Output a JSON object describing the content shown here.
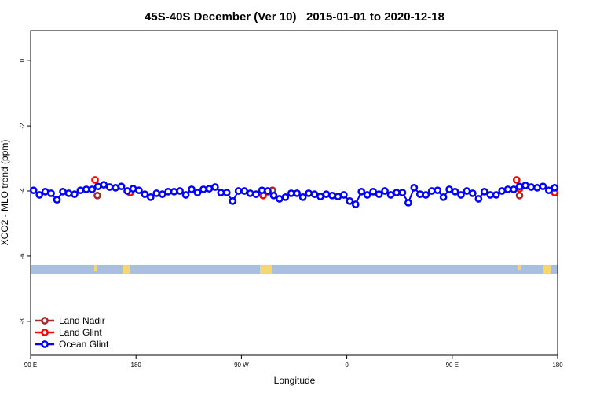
{
  "chart_data": {
    "type": "line",
    "title": "45S-40S December (Ver 10)   2015-01-01 to 2020-12-18",
    "x_label": "Longitude",
    "y_label": "XCO2 - MLO trend (ppm)",
    "xlim": [
      90,
      540
    ],
    "xticks": [
      {
        "value": 90,
        "label": "90 E"
      },
      180,
      {
        "value": 270,
        "label": "90 W"
      },
      {
        "value": 360,
        "label": "0"
      },
      {
        "value": 450,
        "label": "90 E"
      },
      {
        "value": 540,
        "label": "180"
      }
    ],
    "ylim": [
      -9.04,
      0.92
    ],
    "yticks": [
      0,
      -2,
      -4,
      -6,
      -8
    ],
    "legend": "bottom-left",
    "series": [
      {
        "name": "Land Nadir",
        "color": "#a52a2a",
        "connected": false,
        "x": [
          147,
          296.5,
          507.5
        ],
        "values": [
          -4.14,
          -3.98,
          -4.14
        ]
      },
      {
        "name": "Land Glint",
        "color": "#ff0000",
        "connected": false,
        "x": [
          145,
          175,
          288.5,
          292.5,
          505,
          507.5,
          537.5
        ],
        "values": [
          -3.66,
          -4.05,
          -4.14,
          -4.02,
          -3.66,
          -3.93,
          -4.05
        ]
      },
      {
        "name": "Ocean Glint",
        "color": "#0000ff",
        "connected": true,
        "x": [
          92.5,
          97.5,
          102.5,
          107.5,
          112.5,
          117.5,
          122.5,
          127.5,
          132.5,
          137.5,
          142.5,
          147.5,
          152.5,
          157.5,
          162.5,
          167.5,
          172.5,
          177.5,
          182.5,
          187.5,
          192.5,
          197.5,
          202.5,
          207.5,
          212.5,
          217.5,
          222.5,
          227.5,
          232.5,
          237.5,
          242.5,
          247.5,
          252.5,
          257.5,
          262.5,
          267.5,
          272.5,
          277.5,
          282.5,
          287.5,
          292.5,
          297.5,
          302.5,
          307.5,
          312.5,
          317.5,
          322.5,
          327.5,
          332.5,
          337.5,
          342.5,
          347.5,
          352.5,
          357.5,
          362.5,
          367.5,
          372.5,
          377.5,
          382.5,
          387.5,
          392.5,
          397.5,
          402.5,
          407.5,
          412.5,
          417.5,
          422.5,
          427.5,
          432.5,
          437.5,
          442.5,
          447.5,
          452.5,
          457.5,
          462.5,
          467.5,
          472.5,
          477.5,
          482.5,
          487.5,
          492.5,
          497.5,
          502.5,
          507.5,
          512.5,
          517.5,
          522.5,
          527.5,
          532.5,
          537.5
        ],
        "values": [
          -3.98,
          -4.12,
          -4.02,
          -4.07,
          -4.27,
          -4.02,
          -4.07,
          -4.1,
          -3.98,
          -3.95,
          -3.95,
          -3.86,
          -3.81,
          -3.88,
          -3.9,
          -3.86,
          -4.0,
          -3.93,
          -3.98,
          -4.1,
          -4.19,
          -4.07,
          -4.1,
          -4.02,
          -4.02,
          -4.0,
          -4.12,
          -3.95,
          -4.05,
          -3.95,
          -3.93,
          -3.88,
          -4.05,
          -4.05,
          -4.31,
          -4.0,
          -4.0,
          -4.07,
          -4.1,
          -3.98,
          -4.0,
          -4.14,
          -4.24,
          -4.19,
          -4.07,
          -4.07,
          -4.19,
          -4.07,
          -4.1,
          -4.17,
          -4.1,
          -4.14,
          -4.17,
          -4.12,
          -4.31,
          -4.41,
          -4.02,
          -4.12,
          -4.02,
          -4.1,
          -4.0,
          -4.12,
          -4.05,
          -4.05,
          -4.36,
          -3.9,
          -4.1,
          -4.12,
          -4.0,
          -3.98,
          -4.19,
          -3.95,
          -4.02,
          -4.12,
          -4.0,
          -4.07,
          -4.24,
          -4.02,
          -4.12,
          -4.12,
          -4.0,
          -3.95,
          -3.95,
          -3.86,
          -3.83,
          -3.88,
          -3.9,
          -3.86,
          -3.98,
          -3.9
        ]
      }
    ]
  }
}
